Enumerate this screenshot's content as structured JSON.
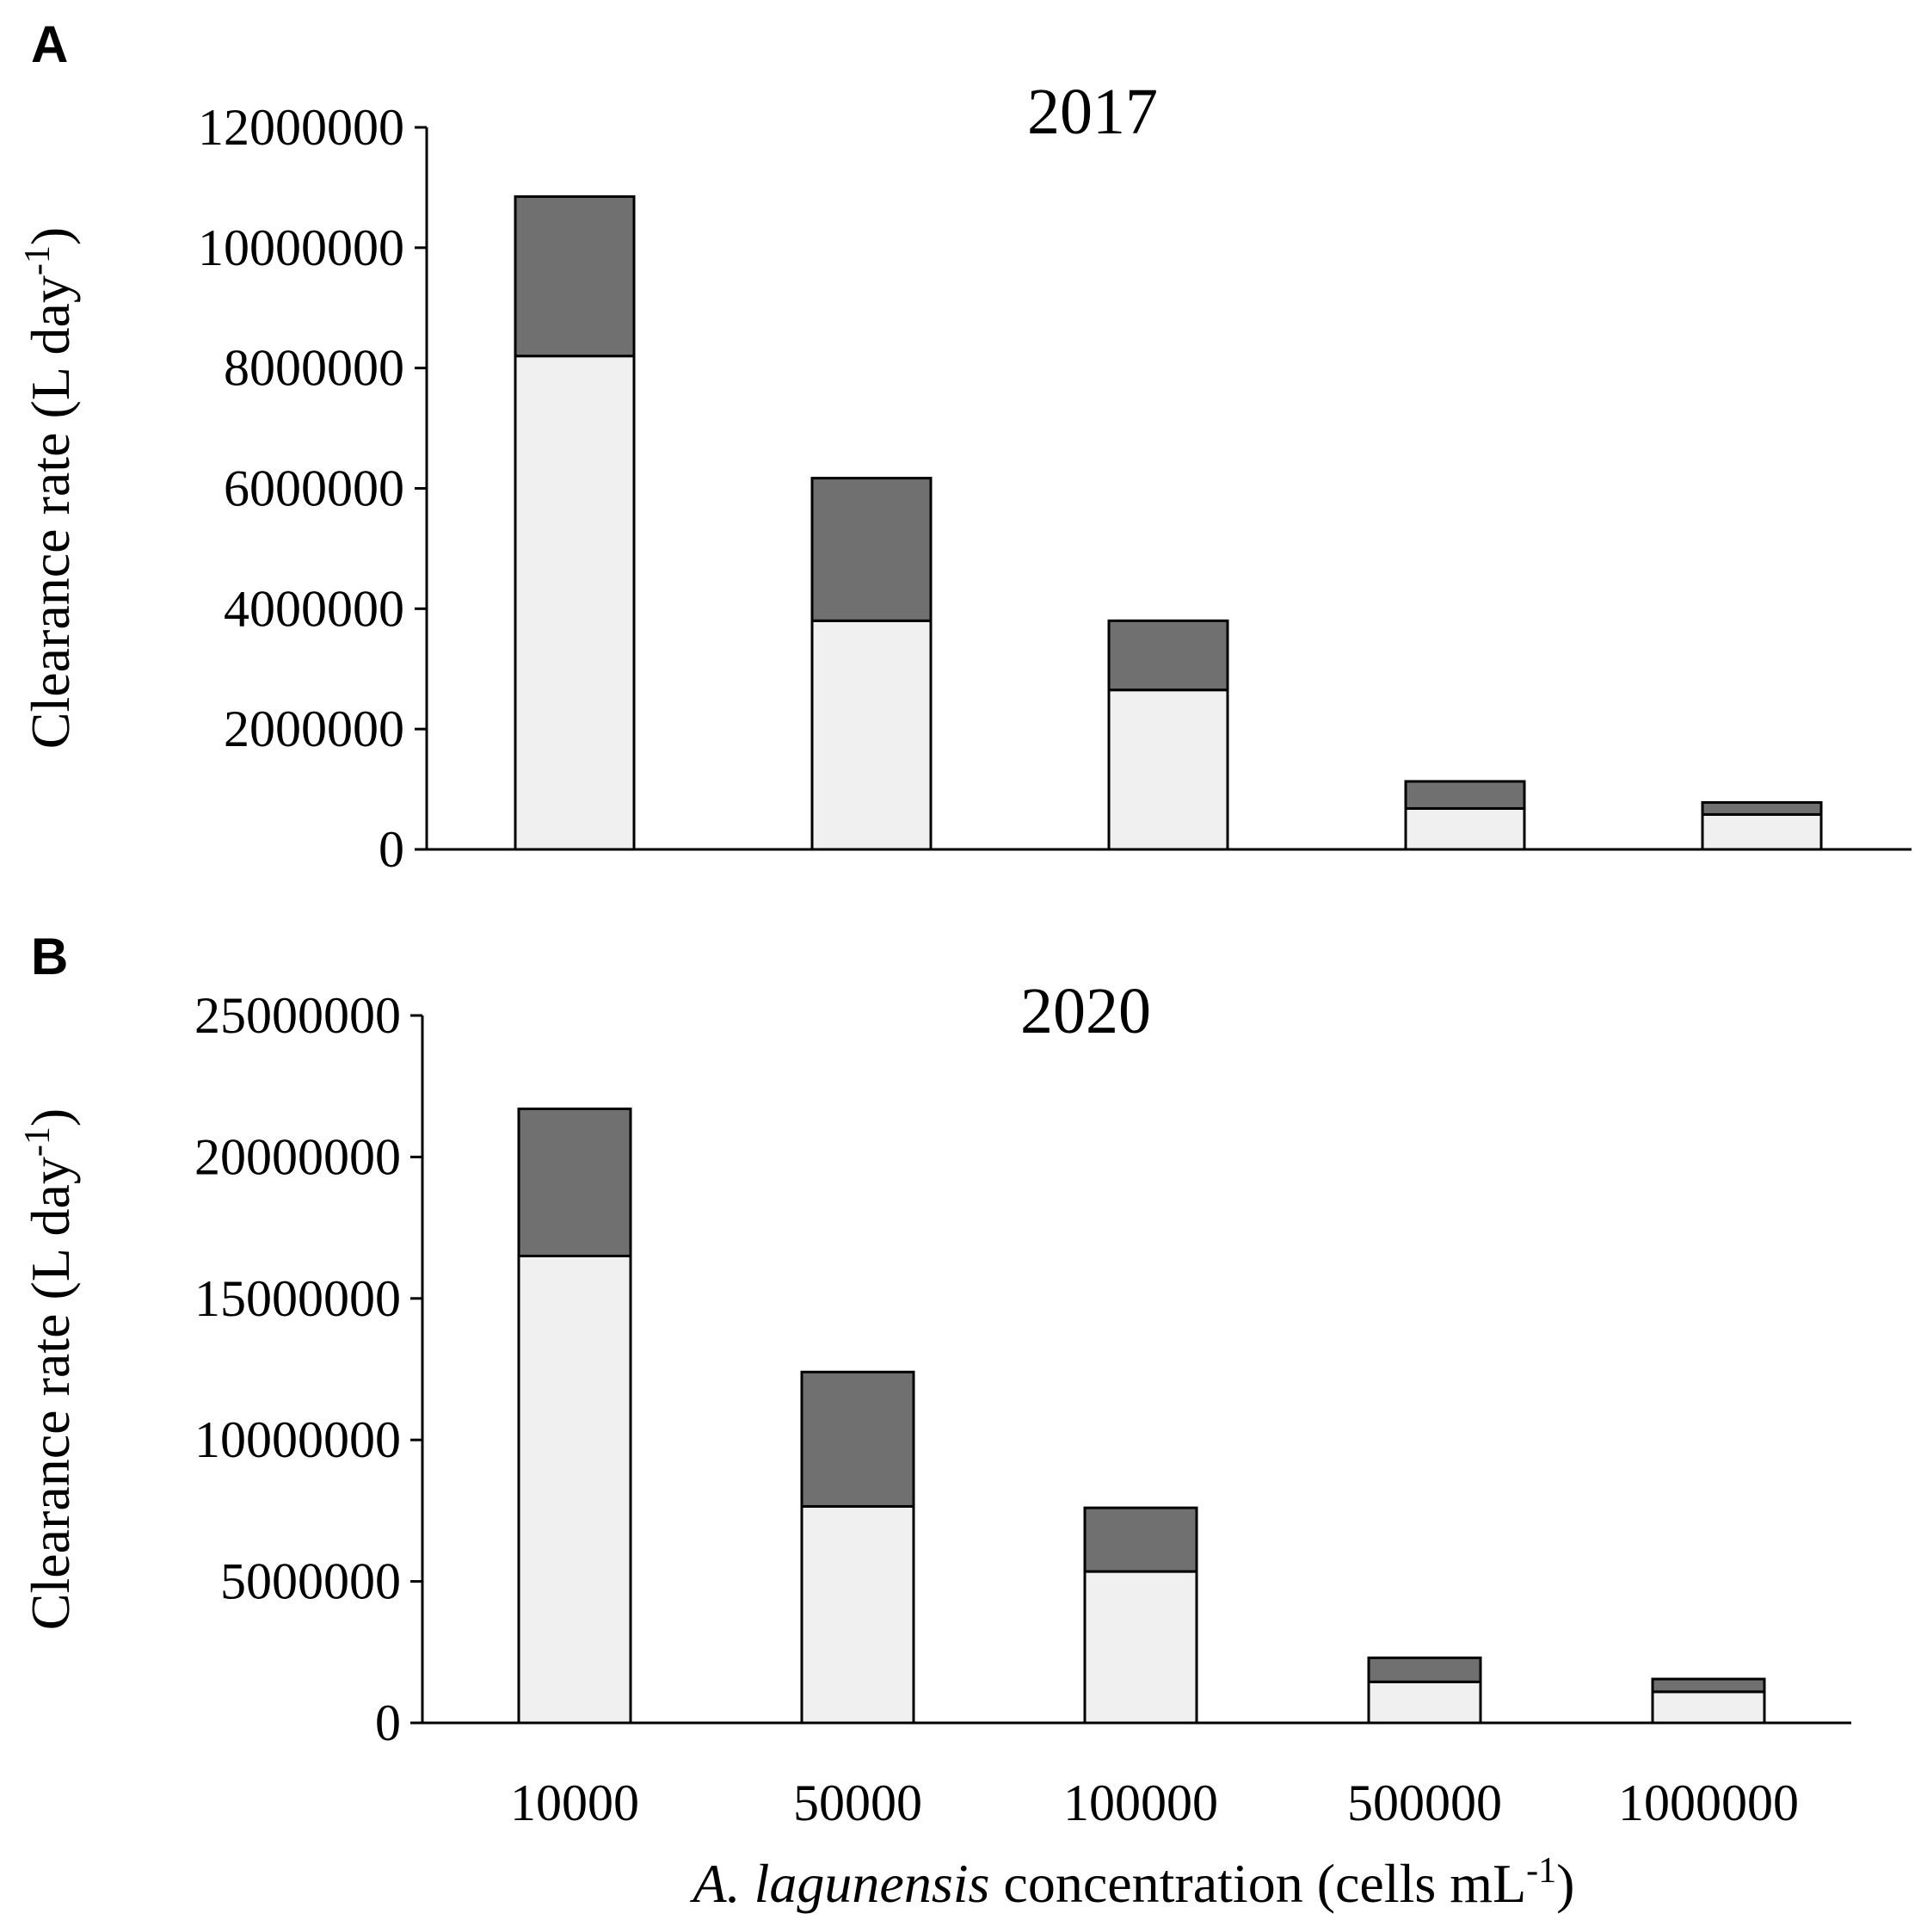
{
  "chart_data": [
    {
      "type": "bar",
      "stacked": true,
      "panel_label": "A",
      "title": "2017",
      "ylabel": "Clearance rate (L day-1)",
      "ylabel_main": "Clearance rate (L day",
      "ylabel_sup": "-1",
      "ylabel_close": ")",
      "xlabel": "",
      "categories": [
        "10000",
        "50000",
        "100000",
        "500000",
        "1000000"
      ],
      "ylim": [
        0,
        12000000
      ],
      "yticks": [
        0,
        2000000,
        4000000,
        6000000,
        8000000,
        10000000,
        12000000
      ],
      "ytick_labels": [
        "0",
        "2000000",
        "4000000",
        "6000000",
        "8000000",
        "10000000",
        "12000000"
      ],
      "show_x_tick_labels": false,
      "grid": false,
      "series": [
        {
          "values": [
            8200000,
            3800000,
            2650000,
            680000,
            580000
          ],
          "color": "#f0f0f0"
        },
        {
          "values": [
            2650000,
            2370000,
            1150000,
            450000,
            200000
          ],
          "color": "#707070"
        }
      ]
    },
    {
      "type": "bar",
      "stacked": true,
      "panel_label": "B",
      "title": "2020",
      "ylabel": "Clearance rate (L day-1)",
      "ylabel_main": "Clearance rate (L day",
      "ylabel_sup": "-1",
      "ylabel_close": ")",
      "xlabel": "A. lagunensis concentration (cells mL-1)",
      "xlabel_italic": "A. lagunensis",
      "xlabel_main": " concentration (cells mL",
      "xlabel_sup": "-1",
      "xlabel_close": ")",
      "categories": [
        "10000",
        "50000",
        "100000",
        "500000",
        "1000000"
      ],
      "ylim": [
        0,
        25000000
      ],
      "yticks": [
        0,
        5000000,
        10000000,
        15000000,
        20000000,
        25000000
      ],
      "ytick_labels": [
        "0",
        "5000000",
        "10000000",
        "15000000",
        "20000000",
        "25000000"
      ],
      "show_x_tick_labels": true,
      "grid": false,
      "series": [
        {
          "values": [
            16500000,
            7650000,
            5350000,
            1450000,
            1100000
          ],
          "color": "#f0f0f0"
        },
        {
          "values": [
            5200000,
            4750000,
            2250000,
            850000,
            450000
          ],
          "color": "#707070"
        }
      ]
    }
  ]
}
